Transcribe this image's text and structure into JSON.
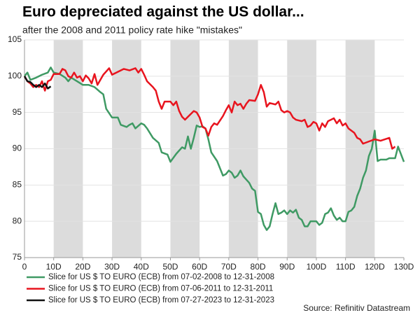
{
  "chart_data": {
    "type": "line",
    "title": "Euro depreciated against the US dollar...",
    "subtitle": "after the 2008 and 2011 policy rate hike \"mistakes\"",
    "source": "Source: Refinitiv Datastream",
    "xlim": [
      0,
      130
    ],
    "xticks": [
      0,
      {
        "value": 10,
        "label": "10D"
      },
      {
        "value": 20,
        "label": "20D"
      },
      {
        "value": 30,
        "label": "30D"
      },
      {
        "value": 40,
        "label": "40D"
      },
      {
        "value": 50,
        "label": "50D"
      },
      {
        "value": 60,
        "label": "60D"
      },
      {
        "value": 70,
        "label": "70D"
      },
      {
        "value": 80,
        "label": "80D"
      },
      {
        "value": 90,
        "label": "90D"
      },
      {
        "value": 100,
        "label": "100D"
      },
      {
        "value": 110,
        "label": "110D"
      },
      {
        "value": 120,
        "label": "120D"
      },
      {
        "value": 130,
        "label": "130D"
      }
    ],
    "ylim": [
      75,
      105
    ],
    "yticks": [
      75,
      80,
      85,
      90,
      95,
      100,
      105
    ],
    "grid": true,
    "series": [
      {
        "name": "Slice for US $ TO EURO (ECB) from 07-02-2008 to 12-31-2008",
        "color": "#3f9a64",
        "x": [
          0,
          1,
          2,
          4,
          6,
          8,
          9,
          10,
          12,
          14,
          15,
          16,
          18,
          20,
          22,
          24,
          26,
          27,
          28,
          30,
          32,
          33,
          35,
          36,
          37,
          38,
          40,
          41,
          42,
          44,
          46,
          47,
          49,
          50,
          52,
          54,
          55,
          56,
          57,
          58,
          59,
          60,
          61,
          62,
          63,
          64,
          66,
          68,
          69,
          70,
          71,
          72,
          73,
          74,
          75,
          77,
          78,
          79,
          80,
          81,
          82,
          83,
          84,
          85,
          86,
          87,
          88,
          89,
          90,
          91,
          92,
          93,
          94,
          95,
          96,
          97,
          98,
          99,
          100,
          101,
          102,
          103,
          104,
          105,
          106,
          107,
          108,
          109,
          110,
          111,
          112,
          113,
          114,
          115,
          116,
          117,
          118,
          119,
          120,
          121,
          122,
          123,
          124,
          125,
          126,
          127,
          128,
          130
        ],
        "values": [
          100,
          100.5,
          99.5,
          99.8,
          100.2,
          100.5,
          101.2,
          100.5,
          100.3,
          99.8,
          99.3,
          99.8,
          99.3,
          98.8,
          98.8,
          98.5,
          97.8,
          97.5,
          95.5,
          94.3,
          94.3,
          93.3,
          93,
          93.3,
          93.5,
          92.8,
          93.5,
          93.3,
          92.8,
          91.5,
          90.8,
          89.5,
          89.2,
          88.2,
          89.3,
          90.2,
          90,
          91.7,
          90,
          91.5,
          93.2,
          93,
          93.1,
          92.8,
          91.3,
          89.5,
          88.3,
          86.3,
          86.5,
          87,
          86.7,
          86,
          86.3,
          87,
          86.2,
          85.3,
          84.5,
          84.2,
          81.3,
          81,
          79.5,
          78.8,
          79.3,
          81,
          82.5,
          81,
          81.2,
          81.5,
          81,
          81.5,
          81.2,
          81.6,
          80.5,
          80.2,
          79.3,
          79.3,
          80,
          80,
          80,
          79.5,
          79.8,
          81,
          81.2,
          81.8,
          80.8,
          80.2,
          80.5,
          80,
          80,
          81.3,
          81.5,
          82,
          83.5,
          84.5,
          86,
          87,
          89,
          90,
          92.5,
          88.3,
          88.5,
          88.5,
          88.5,
          88.7,
          88.7,
          88.7,
          90.3,
          88.2
        ]
      },
      {
        "name": "Slice for US $ TO EURO (ECB) from 07-06-2011 to 12-31-2011",
        "color": "#e8141e",
        "x": [
          0,
          1,
          2,
          3,
          4,
          5,
          6,
          7,
          8,
          9,
          10,
          12,
          13,
          14,
          15,
          16,
          17,
          18,
          19,
          20,
          21,
          22,
          23,
          24,
          25,
          27,
          29,
          30,
          32,
          34,
          36,
          38,
          39,
          40,
          41,
          42,
          44,
          45,
          46,
          47,
          48,
          50,
          51,
          52,
          53,
          54,
          55,
          57,
          58,
          59,
          60,
          61,
          62,
          63,
          64,
          65,
          66,
          68,
          69,
          70,
          71,
          72,
          73,
          74,
          75,
          76,
          77,
          79,
          80,
          81,
          82,
          83,
          84,
          86,
          87,
          88,
          89,
          90,
          91,
          92,
          93,
          95,
          96,
          97,
          98,
          99,
          100,
          101,
          102,
          103,
          104,
          106,
          107,
          108,
          109,
          110,
          111,
          113,
          114,
          115,
          116,
          118,
          120,
          122,
          125,
          126,
          127
        ],
        "values": [
          100,
          99.3,
          99,
          98.5,
          98.8,
          98.5,
          99.3,
          98,
          99.3,
          99.5,
          100.3,
          100.3,
          101,
          100.8,
          100,
          99.8,
          100.5,
          99.8,
          100,
          99.3,
          100.1,
          99.7,
          99,
          100.3,
          98.8,
          100.2,
          101.1,
          100.2,
          100.6,
          101,
          100.8,
          101.1,
          100.5,
          101,
          100.2,
          99.3,
          98.5,
          98,
          96.5,
          95.5,
          96.5,
          96.5,
          96,
          96.5,
          95.2,
          94.4,
          94,
          94.8,
          95.2,
          95,
          94.3,
          93,
          92.8,
          91.8,
          93,
          93.5,
          93.3,
          94.5,
          95.3,
          96,
          95,
          96.5,
          96,
          96.2,
          95.5,
          96.2,
          96.7,
          96.6,
          97.5,
          98.8,
          97.8,
          95.8,
          96.3,
          96.1,
          96.5,
          95.3,
          95,
          95.2,
          95,
          94.3,
          94,
          93.8,
          94,
          93,
          93.2,
          93.7,
          93.5,
          92.5,
          93.5,
          93,
          93.8,
          94.2,
          93.5,
          94,
          93.2,
          93.5,
          92.8,
          92.2,
          91.5,
          91.3,
          90.7,
          91,
          91.3,
          91.1,
          91.5,
          90,
          90.3
        ]
      },
      {
        "name": "Slice for US $ TO EURO (ECB) from 07-27-2023 to 12-31-2023",
        "color": "#111111",
        "x": [
          0,
          1,
          2,
          3,
          4,
          5,
          6,
          7,
          8,
          9
        ],
        "values": [
          100,
          99.3,
          99.2,
          98.8,
          98.5,
          98.8,
          98.5,
          99,
          98.3,
          98.6
        ]
      }
    ]
  }
}
